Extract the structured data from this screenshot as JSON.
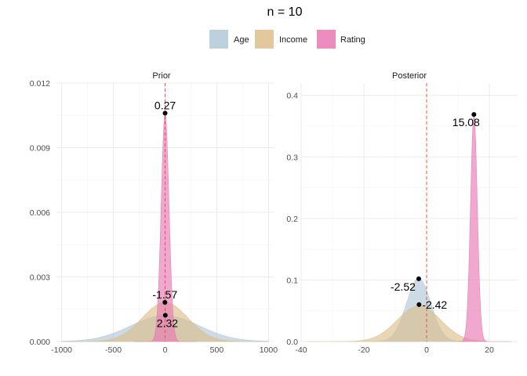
{
  "chart_data": {
    "type": "area",
    "title": "n = 10",
    "legend": {
      "position": "top",
      "entries": [
        {
          "name": "Age",
          "color": "#b0c8d8"
        },
        {
          "name": "Income",
          "color": "#dcc08c"
        },
        {
          "name": "Rating",
          "color": "#e879b4"
        }
      ]
    },
    "reference_line": {
      "x": 0,
      "color": "#e8544e",
      "style": "dashed"
    },
    "panels": [
      {
        "label": "Prior",
        "xlim": [
          -1050,
          1050
        ],
        "ylim": [
          0,
          0.012
        ],
        "xticks": [
          -1000,
          -500,
          0,
          500,
          1000
        ],
        "xtick_labels": [
          "-1000",
          "-500",
          "0",
          "500",
          "1000"
        ],
        "yticks": [
          0,
          0.003,
          0.006,
          0.009,
          0.012
        ],
        "ytick_labels": [
          "0.000",
          "0.003",
          "0.006",
          "0.009",
          "0.012"
        ],
        "series": [
          {
            "name": "Age",
            "type": "normal",
            "mean": 0,
            "sd": 330,
            "range": [
              -1000,
              1000
            ]
          },
          {
            "name": "Income",
            "type": "normal",
            "mean": 0,
            "sd": 220,
            "range": [
              -1000,
              1000
            ]
          },
          {
            "name": "Rating",
            "type": "normal",
            "mean": 0,
            "sd": 37.6,
            "range": [
              -300,
              300
            ]
          }
        ],
        "points": [
          {
            "series": "Rating",
            "x": 0.27,
            "y": 0.0106,
            "label": "0.27",
            "label_pos": "above"
          },
          {
            "series": "Age",
            "x": -1.57,
            "y": 0.00182,
            "label": "-1.57",
            "label_pos": "above"
          },
          {
            "series": "Income",
            "x": 2.32,
            "y": 0.00122,
            "label": "2.32",
            "label_pos": "below"
          }
        ]
      },
      {
        "label": "Posterior",
        "xlim": [
          -40,
          29
        ],
        "ylim": [
          0,
          0.42
        ],
        "xticks": [
          -40,
          -20,
          0,
          20
        ],
        "xtick_labels": [
          "-40",
          "-20",
          "0",
          "20"
        ],
        "yticks": [
          0,
          0.1,
          0.2,
          0.3,
          0.4
        ],
        "ytick_labels": [
          "0.0",
          "0.1",
          "0.2",
          "0.3",
          "0.4"
        ],
        "series": [
          {
            "name": "Age",
            "type": "normal",
            "mean": -2.52,
            "sd": 3.9,
            "range": [
              -17,
              12
            ]
          },
          {
            "name": "Income",
            "type": "normal",
            "mean": -2.42,
            "sd": 6.9,
            "range": [
              -38,
              19
            ]
          },
          {
            "name": "Rating",
            "type": "normal",
            "mean": 15.08,
            "sd": 1.08,
            "range": [
              10,
              27
            ]
          }
        ],
        "points": [
          {
            "series": "Rating",
            "x": 15.08,
            "y": 0.369,
            "label": "15.08",
            "label_pos": "below-left"
          },
          {
            "series": "Age",
            "x": -2.52,
            "y": 0.102,
            "label": "-2.52",
            "label_pos": "left"
          },
          {
            "series": "Income",
            "x": -2.42,
            "y": 0.06,
            "label": "-2.42",
            "label_pos": "right"
          }
        ]
      }
    ]
  }
}
